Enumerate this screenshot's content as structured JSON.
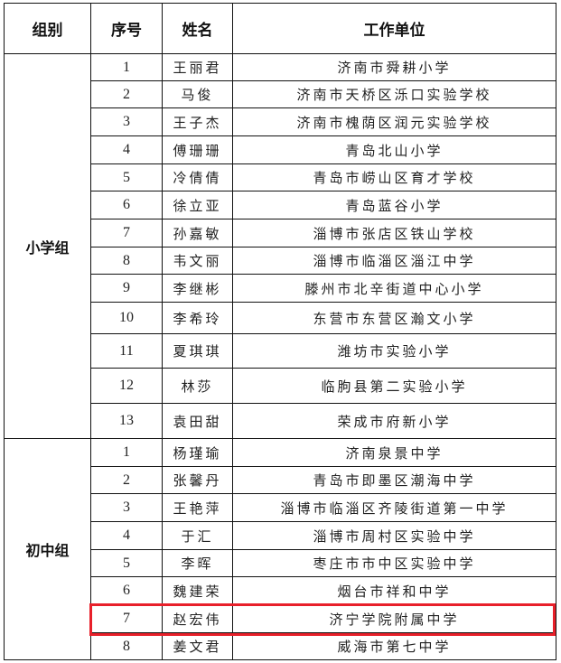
{
  "header": {
    "group": "组别",
    "index": "序号",
    "name": "姓名",
    "unit": "工作单位"
  },
  "groups": [
    {
      "label": "小学组",
      "rows": [
        {
          "no": "1",
          "name": "王丽君",
          "unit": "济南市舜耕小学"
        },
        {
          "no": "2",
          "name": "马俊",
          "unit": "济南市天桥区泺口实验学校"
        },
        {
          "no": "3",
          "name": "王子杰",
          "unit": "济南市槐荫区润元实验学校"
        },
        {
          "no": "4",
          "name": "傅珊珊",
          "unit": "青岛北山小学"
        },
        {
          "no": "5",
          "name": "冷倩倩",
          "unit": "青岛市崂山区育才学校"
        },
        {
          "no": "6",
          "name": "徐立亚",
          "unit": "青岛蓝谷小学"
        },
        {
          "no": "7",
          "name": "孙嘉敏",
          "unit": "淄博市张店区铁山学校"
        },
        {
          "no": "8",
          "name": "韦文丽",
          "unit": "淄博市临淄区淄江中学"
        },
        {
          "no": "9",
          "name": "李继彬",
          "unit": "滕州市北辛街道中心小学"
        },
        {
          "no": "10",
          "name": "李希玲",
          "unit": "东营市东营区瀚文小学"
        },
        {
          "no": "11",
          "name": "夏琪琪",
          "unit": "潍坊市实验小学"
        },
        {
          "no": "12",
          "name": "林莎",
          "unit": "临朐县第二实验小学"
        },
        {
          "no": "13",
          "name": "袁田甜",
          "unit": "荣成市府新小学"
        }
      ]
    },
    {
      "label": "初中组",
      "rows": [
        {
          "no": "1",
          "name": "杨瑾瑜",
          "unit": "济南泉景中学"
        },
        {
          "no": "2",
          "name": "张馨丹",
          "unit": "青岛市即墨区潮海中学"
        },
        {
          "no": "3",
          "name": "王艳萍",
          "unit": "淄博市临淄区齐陵街道第一中学"
        },
        {
          "no": "4",
          "name": "于汇",
          "unit": "淄博市周村区实验中学"
        },
        {
          "no": "5",
          "name": "李晖",
          "unit": "枣庄市市中区实验中学"
        },
        {
          "no": "6",
          "name": "魏建荣",
          "unit": "烟台市祥和中学"
        },
        {
          "no": "7",
          "name": "赵宏伟",
          "unit": "济宁学院附属中学"
        },
        {
          "no": "8",
          "name": "姜文君",
          "unit": "威海市第七中学"
        }
      ]
    }
  ],
  "highlight": {
    "group": 1,
    "row": 6,
    "color": "#e8202a"
  }
}
